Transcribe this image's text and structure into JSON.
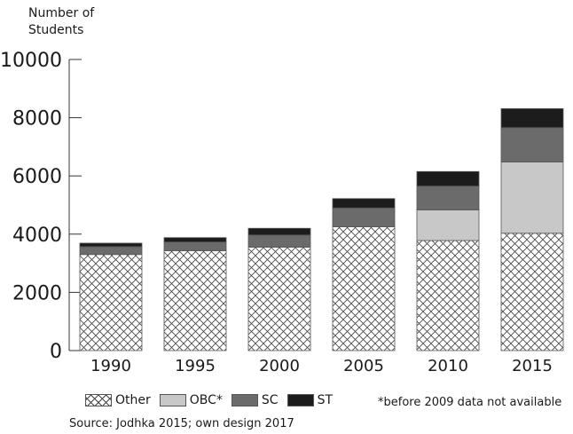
{
  "chart_data": {
    "type": "bar",
    "stacked": true,
    "ylabel": "Number of Students",
    "ylim": [
      0,
      10000
    ],
    "yticks": [
      0,
      2000,
      4000,
      6000,
      8000,
      10000
    ],
    "categories": [
      "1990",
      "1995",
      "2000",
      "2005",
      "2010",
      "2015"
    ],
    "series": [
      {
        "name": "Other",
        "pattern": "crosshatch",
        "color": "#ffffff",
        "values": [
          3300,
          3430,
          3550,
          4250,
          3780,
          4030
        ]
      },
      {
        "name": "OBC*",
        "color": "#c8c8c8",
        "values": [
          0,
          0,
          0,
          0,
          1050,
          2450
        ]
      },
      {
        "name": "SC",
        "color": "#6b6b6b",
        "values": [
          270,
          300,
          420,
          650,
          820,
          1180
        ]
      },
      {
        "name": "ST",
        "color": "#1c1c1c",
        "values": [
          120,
          150,
          230,
          320,
          500,
          650
        ]
      }
    ],
    "note": "*before 2009 data not available",
    "source": "Source: Jodhka 2015; own design 2017"
  }
}
